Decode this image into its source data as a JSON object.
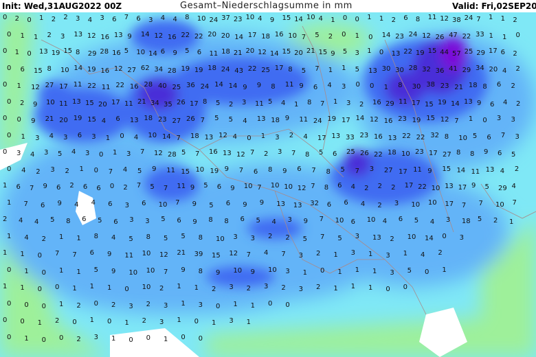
{
  "header": {
    "init": "Init: Wed,31AUG2022 00Z",
    "title": "Gesamt–Niederschlagsumme in mm",
    "valid": "Valid: Fri,02SEP2022"
  },
  "colors": {
    "background": "#ffffff",
    "light_green": "#9ef09a",
    "cyan": "#7fe8f6",
    "light_blue": "#63b4f8",
    "blue": "#3f6cf2",
    "violet": "#4a2fd8",
    "purple": "#7a10d8",
    "border": "#a88a8a"
  },
  "value_rows": [
    [
      "0",
      "2",
      "0",
      "1",
      "2",
      "2",
      "3",
      "4",
      "3",
      "6",
      "7",
      "6",
      "3",
      "4",
      "4",
      "8",
      "10",
      "24",
      "37",
      "23",
      "10",
      "4",
      "9",
      "15",
      "14",
      "10",
      "4",
      "1",
      "0",
      "0",
      "1",
      "1",
      "2",
      "6",
      "8",
      "11",
      "12",
      "38",
      "24",
      "7",
      "1",
      "1",
      "2"
    ],
    [
      "0",
      "1",
      "1",
      "2",
      "3",
      "13",
      "12",
      "16",
      "13",
      "9",
      "14",
      "12",
      "16",
      "22",
      "22",
      "20",
      "20",
      "14",
      "17",
      "18",
      "16",
      "10",
      "7",
      "5",
      "2",
      "0",
      "1",
      "0",
      "14",
      "23",
      "24",
      "12",
      "26",
      "47",
      "22",
      "33",
      "1",
      "1",
      "0"
    ],
    [
      "0",
      "1",
      "0",
      "13",
      "19",
      "15",
      "8",
      "29",
      "28",
      "16",
      "5",
      "10",
      "14",
      "6",
      "9",
      "5",
      "6",
      "11",
      "18",
      "21",
      "20",
      "12",
      "14",
      "15",
      "20",
      "21",
      "15",
      "9",
      "5",
      "3",
      "1",
      "0",
      "13",
      "22",
      "19",
      "15",
      "44",
      "57",
      "25",
      "29",
      "17",
      "6",
      "2"
    ],
    [
      "0",
      "6",
      "15",
      "8",
      "10",
      "14",
      "19",
      "16",
      "12",
      "27",
      "62",
      "34",
      "28",
      "19",
      "19",
      "18",
      "24",
      "43",
      "22",
      "25",
      "17",
      "8",
      "5",
      "7",
      "1",
      "1",
      "5",
      "13",
      "30",
      "30",
      "28",
      "32",
      "36",
      "41",
      "29",
      "34",
      "20",
      "4",
      "2"
    ],
    [
      "0",
      "1",
      "12",
      "27",
      "17",
      "11",
      "22",
      "11",
      "22",
      "16",
      "28",
      "40",
      "25",
      "36",
      "24",
      "14",
      "14",
      "9",
      "9",
      "8",
      "11",
      "9",
      "6",
      "4",
      "3",
      "0",
      "0",
      "1",
      "8",
      "30",
      "38",
      "23",
      "21",
      "18",
      "8",
      "6",
      "2"
    ],
    [
      "0",
      "2",
      "9",
      "10",
      "11",
      "13",
      "15",
      "20",
      "17",
      "11",
      "21",
      "34",
      "35",
      "26",
      "17",
      "8",
      "5",
      "2",
      "3",
      "11",
      "5",
      "4",
      "1",
      "8",
      "7",
      "1",
      "3",
      "2",
      "16",
      "29",
      "11",
      "17",
      "15",
      "19",
      "14",
      "13",
      "9",
      "6",
      "4",
      "2"
    ],
    [
      "0",
      "0",
      "9",
      "21",
      "20",
      "19",
      "15",
      "4",
      "6",
      "13",
      "18",
      "23",
      "27",
      "26",
      "7",
      "5",
      "5",
      "4",
      "13",
      "18",
      "9",
      "11",
      "24",
      "19",
      "17",
      "14",
      "12",
      "16",
      "23",
      "19",
      "15",
      "12",
      "7",
      "1",
      "0",
      "3",
      "3"
    ],
    [
      "0",
      "1",
      "3",
      "4",
      "3",
      "6",
      "3",
      "1",
      "0",
      "4",
      "10",
      "14",
      "7",
      "18",
      "13",
      "12",
      "4",
      "0",
      "1",
      "3",
      "2",
      "4",
      "17",
      "13",
      "33",
      "23",
      "16",
      "13",
      "22",
      "22",
      "32",
      "8",
      "10",
      "5",
      "6",
      "7",
      "3"
    ],
    [
      "0",
      "3",
      "4",
      "3",
      "5",
      "4",
      "3",
      "0",
      "1",
      "3",
      "7",
      "12",
      "28",
      "5",
      "7",
      "16",
      "13",
      "12",
      "7",
      "2",
      "3",
      "7",
      "8",
      "5",
      "6",
      "25",
      "26",
      "22",
      "18",
      "10",
      "23",
      "17",
      "27",
      "8",
      "8",
      "9",
      "6",
      "5"
    ],
    [
      "0",
      "4",
      "2",
      "3",
      "2",
      "1",
      "0",
      "7",
      "4",
      "5",
      "9",
      "11",
      "15",
      "10",
      "19",
      "9",
      "7",
      "6",
      "8",
      "9",
      "6",
      "7",
      "8",
      "5",
      "7",
      "3",
      "27",
      "17",
      "11",
      "9",
      "15",
      "14",
      "11",
      "13",
      "4",
      "2"
    ],
    [
      "1",
      "6",
      "7",
      "9",
      "6",
      "2",
      "6",
      "6",
      "0",
      "2",
      "7",
      "5",
      "7",
      "11",
      "9",
      "5",
      "6",
      "9",
      "10",
      "7",
      "10",
      "10",
      "12",
      "7",
      "8",
      "6",
      "4",
      "2",
      "2",
      "2",
      "17",
      "22",
      "10",
      "13",
      "17",
      "9",
      "5",
      "29",
      "4"
    ],
    [
      "1",
      "7",
      "6",
      "9",
      "4",
      "4",
      "6",
      "3",
      "6",
      "10",
      "7",
      "9",
      "5",
      "6",
      "9",
      "9",
      "13",
      "13",
      "32",
      "6",
      "6",
      "4",
      "2",
      "3",
      "10",
      "10",
      "17",
      "7",
      "7",
      "10",
      "7"
    ],
    [
      "2",
      "4",
      "4",
      "5",
      "8",
      "6",
      "5",
      "6",
      "3",
      "3",
      "5",
      "6",
      "9",
      "8",
      "8",
      "6",
      "5",
      "4",
      "3",
      "9",
      "7",
      "10",
      "6",
      "10",
      "4",
      "6",
      "5",
      "4",
      "3",
      "18",
      "5",
      "2",
      "1"
    ],
    [
      "1",
      "4",
      "2",
      "1",
      "1",
      "8",
      "4",
      "5",
      "8",
      "5",
      "5",
      "8",
      "10",
      "3",
      "3",
      "2",
      "2",
      "5",
      "7",
      "5",
      "3",
      "13",
      "2",
      "10",
      "14",
      "0",
      "3"
    ],
    [
      "1",
      "1",
      "0",
      "7",
      "7",
      "6",
      "9",
      "11",
      "10",
      "12",
      "21",
      "39",
      "15",
      "12",
      "7",
      "4",
      "7",
      "3",
      "2",
      "1",
      "3",
      "1",
      "3",
      "1",
      "4",
      "2"
    ],
    [
      "0",
      "1",
      "0",
      "1",
      "1",
      "5",
      "9",
      "10",
      "10",
      "7",
      "9",
      "8",
      "9",
      "10",
      "9",
      "10",
      "3",
      "1",
      "0",
      "1",
      "1",
      "1",
      "3",
      "5",
      "0",
      "1"
    ],
    [
      "1",
      "1",
      "0",
      "0",
      "1",
      "1",
      "1",
      "0",
      "10",
      "2",
      "1",
      "1",
      "2",
      "3",
      "2",
      "3",
      "2",
      "3",
      "2",
      "1",
      "1",
      "1",
      "0",
      "0"
    ],
    [
      "0",
      "0",
      "0",
      "1",
      "2",
      "0",
      "2",
      "3",
      "2",
      "3",
      "1",
      "3",
      "0",
      "1",
      "1",
      "0",
      "0"
    ],
    [
      "0",
      "0",
      "1",
      "2",
      "0",
      "1",
      "0",
      "1",
      "2",
      "3",
      "1",
      "0",
      "1",
      "3",
      "1"
    ],
    [
      "0",
      "1",
      "0",
      "0",
      "2",
      "3",
      "1",
      "0",
      "0",
      "1",
      "0",
      "0"
    ]
  ]
}
